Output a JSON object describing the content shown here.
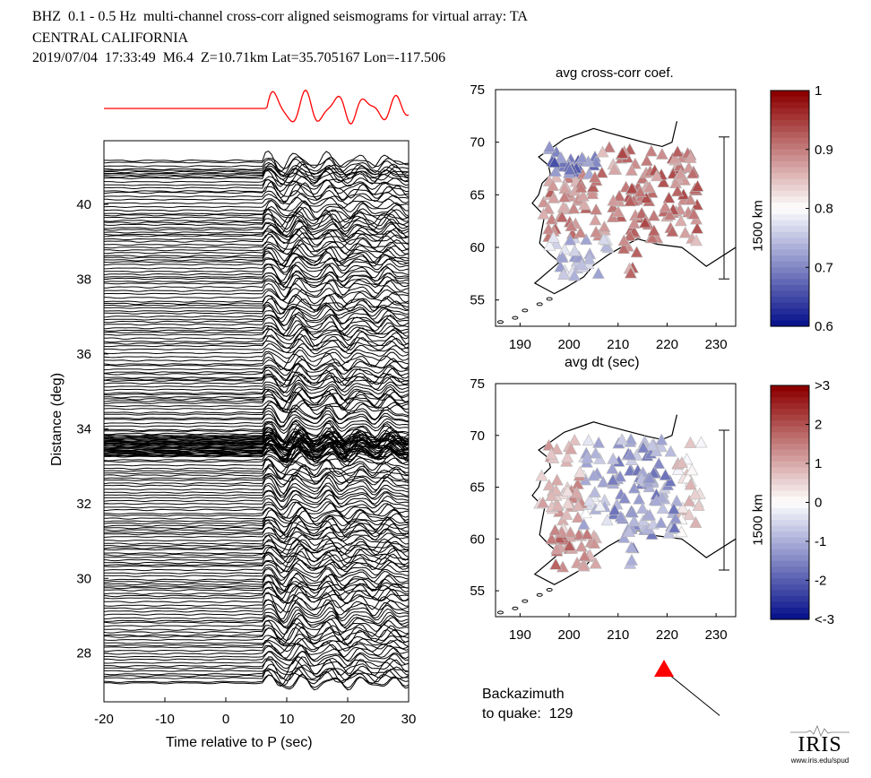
{
  "title": {
    "line1": "BHZ  0.1 - 0.5 Hz  multi-channel cross-corr aligned seismograms for virtual array: TA",
    "line2": "CENTRAL CALIFORNIA",
    "line3": "2019/07/04  17:33:49  M6.4  Z=10.71km Lat=35.705167 Lon=-117.506"
  },
  "chart_data": [
    {
      "type": "line",
      "name": "record-section",
      "title": "",
      "xlabel": "Time relative to P (sec)",
      "ylabel": "Distance (deg)",
      "xlim": [
        -20,
        30
      ],
      "ylim": [
        26.7,
        41.7
      ],
      "x_ticks": [
        -20,
        -10,
        0,
        10,
        20,
        30
      ],
      "y_ticks": [
        28,
        30,
        32,
        34,
        36,
        38,
        40
      ],
      "trace_color": "#000000",
      "stack_color": "#ff0000",
      "trace_distances_range": [
        27.2,
        41.2
      ],
      "trace_count_approx": 220,
      "densest_band_deg": [
        33.2,
        33.8
      ]
    },
    {
      "type": "scatter",
      "name": "avg-cross-corr-map",
      "title": "avg cross-corr coef.",
      "xlim": [
        185,
        234
      ],
      "ylim": [
        52.5,
        75
      ],
      "x_ticks": [
        190,
        200,
        210,
        220,
        230
      ],
      "y_ticks": [
        55,
        60,
        65,
        70,
        75
      ],
      "scale_bar_label": "1500 km",
      "marker": "triangle",
      "colorbar": {
        "min": 0.6,
        "max": 1,
        "ticks": [
          "1",
          "0.9",
          "0.8",
          "0.7",
          "0.6"
        ]
      }
    },
    {
      "type": "scatter",
      "name": "avg-dt-map",
      "title": "avg dt (sec)",
      "xlim": [
        185,
        234
      ],
      "ylim": [
        52.5,
        75
      ],
      "x_ticks": [
        190,
        200,
        210,
        220,
        230
      ],
      "y_ticks": [
        55,
        60,
        65,
        70,
        75
      ],
      "scale_bar_label": "1500 km",
      "marker": "triangle",
      "colorbar": {
        "min": -3,
        "max": 3,
        "ticks": [
          ">3",
          "2",
          "1",
          "0",
          "-1",
          "-2",
          "<-3"
        ]
      }
    }
  ],
  "backazimuth": {
    "line1": "Backazimuth",
    "line2": "to quake:  129",
    "value": 129
  },
  "logo": {
    "word": "IRIS",
    "url": "www.iris.edu/spud"
  }
}
